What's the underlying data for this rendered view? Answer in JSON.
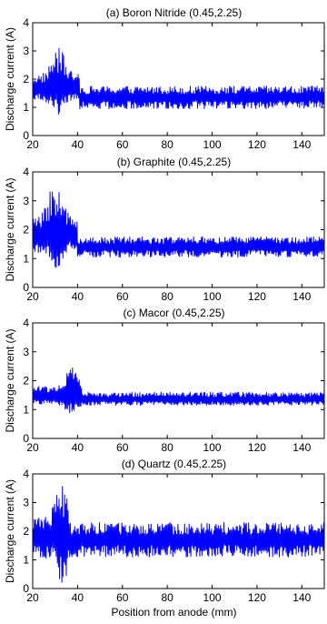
{
  "chart_data": [
    {
      "type": "line",
      "title": "(a) Boron Nitride (0.45,2.25)",
      "xlabel": "",
      "ylabel": "Discharge current (A)",
      "xlim": [
        20,
        150
      ],
      "ylim": [
        0,
        4
      ],
      "xticks": [
        20,
        40,
        60,
        80,
        100,
        120,
        140
      ],
      "yticks": [
        0,
        1,
        2,
        3,
        4
      ],
      "color": "#0000ff",
      "grid": false,
      "signal": {
        "mean_initial": 1.65,
        "mean_after": 1.35,
        "transition_x": 41,
        "peak": {
          "x": 31.5,
          "max": 3.1,
          "min": 0.75
        },
        "after_range": [
          0.95,
          1.75
        ]
      }
    },
    {
      "type": "line",
      "title": "(b) Graphite (0.45,2.25)",
      "xlabel": "",
      "ylabel": "Discharge current (A)",
      "xlim": [
        20,
        150
      ],
      "ylim": [
        0,
        4
      ],
      "xticks": [
        20,
        40,
        60,
        80,
        100,
        120,
        140
      ],
      "yticks": [
        0,
        1,
        2,
        3,
        4
      ],
      "color": "#0000ff",
      "grid": false,
      "signal": {
        "mean_initial": 1.8,
        "mean_after": 1.4,
        "transition_x": 40,
        "peak": {
          "x": 30,
          "max": 3.6,
          "min": 0.55
        },
        "after_range": [
          1.05,
          1.75
        ]
      }
    },
    {
      "type": "line",
      "title": "(c) Macor (0.45,2.25)",
      "xlabel": "",
      "ylabel": "Discharge current (A)",
      "xlim": [
        20,
        150
      ],
      "ylim": [
        0,
        4
      ],
      "xticks": [
        20,
        40,
        60,
        80,
        100,
        120,
        140
      ],
      "yticks": [
        0,
        1,
        2,
        3,
        4
      ],
      "color": "#0000ff",
      "grid": false,
      "signal": {
        "mean_initial": 1.45,
        "mean_after": 1.35,
        "transition_x": 42,
        "peak": {
          "x": 38,
          "max": 2.5,
          "min": 0.85
        },
        "after_range": [
          1.15,
          1.6
        ]
      }
    },
    {
      "type": "line",
      "title": "(d) Quartz (0.45,2.25)",
      "xlabel": "Position from anode (mm)",
      "ylabel": "Discharge current (A)",
      "xlim": [
        20,
        150
      ],
      "ylim": [
        0,
        4
      ],
      "xticks": [
        20,
        40,
        60,
        80,
        100,
        120,
        140
      ],
      "yticks": [
        0,
        1,
        2,
        3,
        4
      ],
      "color": "#0000ff",
      "grid": false,
      "signal": {
        "mean_initial": 1.85,
        "mean_after": 1.7,
        "transition_x": 36,
        "peak": {
          "x": 33,
          "max": 3.6,
          "min": 0.2
        },
        "after_range": [
          1.1,
          2.3
        ]
      }
    }
  ]
}
